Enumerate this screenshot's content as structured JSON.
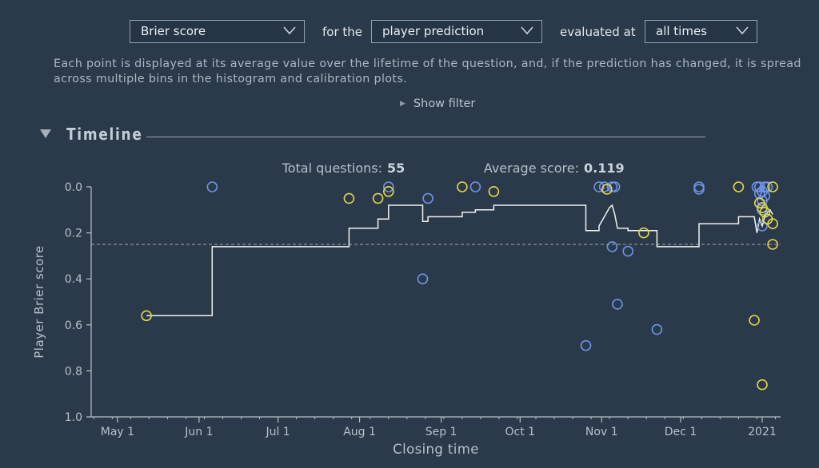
{
  "controls": {
    "metric": {
      "value": "Brier score"
    },
    "for_label": "for the",
    "prediction": {
      "value": "player prediction"
    },
    "evaluated_label": "evaluated at",
    "times": {
      "value": "all times"
    }
  },
  "description": "Each point is displayed at its average value over the lifetime of the question, and, if the prediction has changed, it is spread across multiple bins in the histogram and calibration plots.",
  "show_filter": "Show filter",
  "section_title": "Timeline",
  "stats": {
    "total_label": "Total questions:",
    "total_value": "55",
    "average_label": "Average score:",
    "average_value": "0.119"
  },
  "colors": {
    "blue": "#6f93e6",
    "yellow": "#e3d54a",
    "line": "#f2f2f2",
    "axis": "#b5c0ca"
  },
  "chart_data": {
    "type": "scatter",
    "xlabel": "Closing time",
    "ylabel": "Player Brier score",
    "ylim": [
      0,
      1
    ],
    "y_inverted": true,
    "xlim": [
      "2020-04-21",
      "2021-01-08"
    ],
    "x_ticks": [
      {
        "date": "2020-05-01",
        "label": "May 1"
      },
      {
        "date": "2020-06-01",
        "label": "Jun 1"
      },
      {
        "date": "2020-07-01",
        "label": "Jul 1"
      },
      {
        "date": "2020-08-01",
        "label": "Aug 1"
      },
      {
        "date": "2020-09-01",
        "label": "Sep 1"
      },
      {
        "date": "2020-10-01",
        "label": "Oct 1"
      },
      {
        "date": "2020-11-01",
        "label": "Nov 1"
      },
      {
        "date": "2020-12-01",
        "label": "Dec 1"
      },
      {
        "date": "2021-01-01",
        "label": "2021"
      }
    ],
    "y_ticks": [
      {
        "value": 0.0,
        "label": "0.0"
      },
      {
        "value": 0.2,
        "label": "0.2"
      },
      {
        "value": 0.4,
        "label": "0.4"
      },
      {
        "value": 0.6,
        "label": "0.6"
      },
      {
        "value": 0.8,
        "label": "0.8"
      },
      {
        "value": 1.0,
        "label": "1.0"
      }
    ],
    "average_line": 0.25,
    "series": [
      {
        "color": "blue",
        "points": [
          [
            "2020-06-06",
            0.0
          ],
          [
            "2020-08-12",
            0.0
          ],
          [
            "2020-08-25",
            0.4
          ],
          [
            "2020-08-27",
            0.05
          ],
          [
            "2020-09-14",
            0.0
          ],
          [
            "2020-10-26",
            0.69
          ],
          [
            "2020-10-31",
            0.0
          ],
          [
            "2020-11-02",
            0.0
          ],
          [
            "2020-11-05",
            0.0
          ],
          [
            "2020-11-06",
            0.0
          ],
          [
            "2020-11-05",
            0.26
          ],
          [
            "2020-11-07",
            0.51
          ],
          [
            "2020-11-11",
            0.28
          ],
          [
            "2020-11-22",
            0.62
          ],
          [
            "2020-12-08",
            0.0
          ],
          [
            "2020-12-08",
            0.01
          ],
          [
            "2020-12-30",
            0.0
          ],
          [
            "2020-12-31",
            0.0
          ],
          [
            "2020-12-31",
            0.03
          ],
          [
            "2021-01-01",
            0.02
          ],
          [
            "2021-01-01",
            0.06
          ],
          [
            "2021-01-01",
            0.1
          ],
          [
            "2021-01-01",
            0.17
          ],
          [
            "2021-01-02",
            0.0
          ],
          [
            "2021-01-02",
            0.04
          ],
          [
            "2021-01-03",
            0.0
          ]
        ]
      },
      {
        "color": "yellow",
        "points": [
          [
            "2020-05-12",
            0.56
          ],
          [
            "2020-07-28",
            0.05
          ],
          [
            "2020-08-08",
            0.05
          ],
          [
            "2020-08-12",
            0.02
          ],
          [
            "2020-09-09",
            0.0
          ],
          [
            "2020-09-21",
            0.02
          ],
          [
            "2020-11-03",
            0.01
          ],
          [
            "2020-11-17",
            0.2
          ],
          [
            "2020-12-23",
            0.0
          ],
          [
            "2020-12-29",
            0.58
          ],
          [
            "2020-12-31",
            0.07
          ],
          [
            "2021-01-01",
            0.86
          ],
          [
            "2021-01-01",
            0.09
          ],
          [
            "2021-01-02",
            0.11
          ],
          [
            "2021-01-03",
            0.14
          ],
          [
            "2021-01-05",
            0.0
          ],
          [
            "2021-01-05",
            0.16
          ],
          [
            "2021-01-05",
            0.25
          ]
        ]
      }
    ],
    "running_average": [
      [
        "2020-05-12",
        0.56
      ],
      [
        "2020-06-06",
        0.56
      ],
      [
        "2020-06-06",
        0.26
      ],
      [
        "2020-07-28",
        0.26
      ],
      [
        "2020-07-28",
        0.18
      ],
      [
        "2020-08-08",
        0.18
      ],
      [
        "2020-08-08",
        0.14
      ],
      [
        "2020-08-12",
        0.14
      ],
      [
        "2020-08-12",
        0.08
      ],
      [
        "2020-08-25",
        0.08
      ],
      [
        "2020-08-25",
        0.15
      ],
      [
        "2020-08-27",
        0.15
      ],
      [
        "2020-08-27",
        0.13
      ],
      [
        "2020-09-09",
        0.13
      ],
      [
        "2020-09-09",
        0.11
      ],
      [
        "2020-09-14",
        0.11
      ],
      [
        "2020-09-14",
        0.1
      ],
      [
        "2020-09-21",
        0.1
      ],
      [
        "2020-09-21",
        0.08
      ],
      [
        "2020-10-26",
        0.08
      ],
      [
        "2020-10-26",
        0.19
      ],
      [
        "2020-10-31",
        0.19
      ],
      [
        "2020-10-31",
        0.17
      ],
      [
        "2020-11-02",
        0.13
      ],
      [
        "2020-11-04",
        0.09
      ],
      [
        "2020-11-05",
        0.08
      ],
      [
        "2020-11-06",
        0.12
      ],
      [
        "2020-11-07",
        0.18
      ],
      [
        "2020-11-11",
        0.18
      ],
      [
        "2020-11-11",
        0.19
      ],
      [
        "2020-11-22",
        0.19
      ],
      [
        "2020-11-22",
        0.26
      ],
      [
        "2020-12-08",
        0.26
      ],
      [
        "2020-12-08",
        0.16
      ],
      [
        "2020-12-23",
        0.16
      ],
      [
        "2020-12-23",
        0.13
      ],
      [
        "2020-12-29",
        0.13
      ],
      [
        "2020-12-30",
        0.2
      ],
      [
        "2020-12-31",
        0.14
      ],
      [
        "2021-01-01",
        0.17
      ],
      [
        "2021-01-02",
        0.13
      ],
      [
        "2021-01-03",
        0.11
      ],
      [
        "2021-01-04",
        0.1
      ],
      [
        "2021-01-05",
        0.12
      ]
    ]
  }
}
